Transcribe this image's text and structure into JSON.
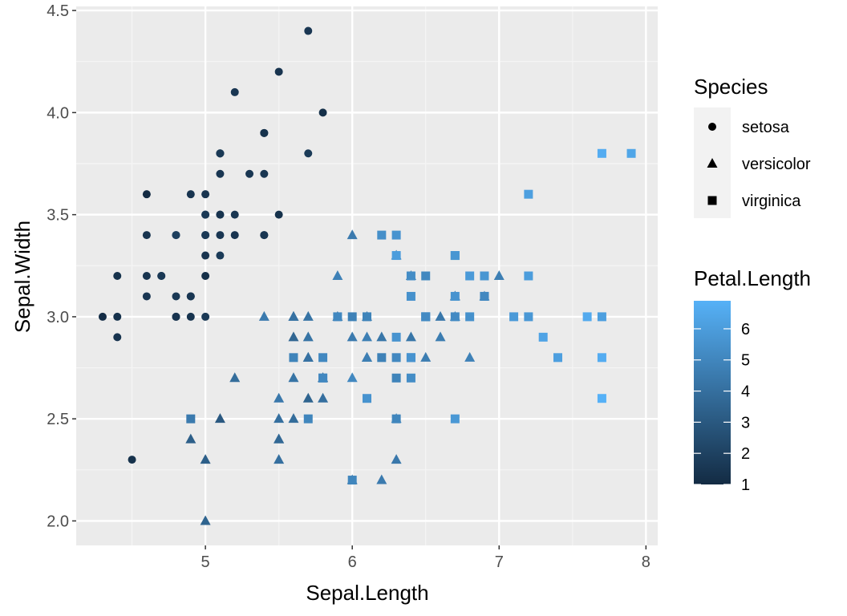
{
  "chart_data": {
    "type": "scatter",
    "title": "",
    "xlabel": "Sepal.Length",
    "ylabel": "Sepal.Width",
    "xlim": [
      4.12,
      8.08
    ],
    "ylim": [
      1.88,
      4.52
    ],
    "x_ticks": [
      "5",
      "6",
      "7",
      "8"
    ],
    "y_ticks": [
      "2.0",
      "2.5",
      "3.0",
      "3.5",
      "4.0",
      "4.5"
    ],
    "grid": true,
    "shape_legend": {
      "title": "Species",
      "position": "right",
      "entries": [
        {
          "label": "setosa",
          "shape": "circle"
        },
        {
          "label": "versicolor",
          "shape": "triangle"
        },
        {
          "label": "virginica",
          "shape": "square"
        }
      ]
    },
    "color_legend": {
      "title": "Petal.Length",
      "position": "right",
      "ticks": [
        "1",
        "2",
        "3",
        "4",
        "5",
        "6"
      ],
      "range": [
        1,
        6.9
      ],
      "low_color": "#132B43",
      "high_color": "#56B1F7"
    },
    "series": [
      {
        "name": "setosa",
        "shape": "circle",
        "points": [
          [
            5.1,
            3.5,
            1.4
          ],
          [
            4.9,
            3.0,
            1.4
          ],
          [
            4.7,
            3.2,
            1.3
          ],
          [
            4.6,
            3.1,
            1.5
          ],
          [
            5.0,
            3.6,
            1.4
          ],
          [
            5.4,
            3.9,
            1.7
          ],
          [
            4.6,
            3.4,
            1.4
          ],
          [
            5.0,
            3.4,
            1.5
          ],
          [
            4.4,
            2.9,
            1.4
          ],
          [
            4.9,
            3.1,
            1.5
          ],
          [
            5.4,
            3.7,
            1.5
          ],
          [
            4.8,
            3.4,
            1.6
          ],
          [
            4.8,
            3.0,
            1.4
          ],
          [
            4.3,
            3.0,
            1.1
          ],
          [
            5.8,
            4.0,
            1.2
          ],
          [
            5.7,
            4.4,
            1.5
          ],
          [
            5.4,
            3.9,
            1.3
          ],
          [
            5.1,
            3.5,
            1.4
          ],
          [
            5.7,
            3.8,
            1.7
          ],
          [
            5.1,
            3.8,
            1.5
          ],
          [
            5.4,
            3.4,
            1.7
          ],
          [
            5.1,
            3.7,
            1.5
          ],
          [
            4.6,
            3.6,
            1.0
          ],
          [
            5.1,
            3.3,
            1.7
          ],
          [
            4.8,
            3.4,
            1.9
          ],
          [
            5.0,
            3.0,
            1.6
          ],
          [
            5.0,
            3.4,
            1.6
          ],
          [
            5.2,
            3.5,
            1.5
          ],
          [
            5.2,
            3.4,
            1.4
          ],
          [
            4.7,
            3.2,
            1.6
          ],
          [
            4.8,
            3.1,
            1.6
          ],
          [
            5.4,
            3.4,
            1.5
          ],
          [
            5.2,
            4.1,
            1.5
          ],
          [
            5.5,
            4.2,
            1.4
          ],
          [
            4.9,
            3.1,
            1.5
          ],
          [
            5.0,
            3.2,
            1.2
          ],
          [
            5.5,
            3.5,
            1.3
          ],
          [
            4.9,
            3.6,
            1.4
          ],
          [
            4.4,
            3.0,
            1.3
          ],
          [
            5.1,
            3.4,
            1.5
          ],
          [
            5.0,
            3.5,
            1.3
          ],
          [
            4.5,
            2.3,
            1.3
          ],
          [
            4.4,
            3.2,
            1.3
          ],
          [
            5.0,
            3.5,
            1.6
          ],
          [
            5.1,
            3.8,
            1.9
          ],
          [
            4.8,
            3.0,
            1.4
          ],
          [
            5.1,
            3.8,
            1.6
          ],
          [
            4.6,
            3.2,
            1.4
          ],
          [
            5.3,
            3.7,
            1.5
          ],
          [
            5.0,
            3.3,
            1.4
          ]
        ]
      },
      {
        "name": "versicolor",
        "shape": "triangle",
        "points": [
          [
            7.0,
            3.2,
            4.7
          ],
          [
            6.4,
            3.2,
            4.5
          ],
          [
            6.9,
            3.1,
            4.9
          ],
          [
            5.5,
            2.3,
            4.0
          ],
          [
            6.5,
            2.8,
            4.6
          ],
          [
            5.7,
            2.8,
            4.5
          ],
          [
            6.3,
            3.3,
            4.7
          ],
          [
            4.9,
            2.4,
            3.3
          ],
          [
            6.6,
            2.9,
            4.6
          ],
          [
            5.2,
            2.7,
            3.9
          ],
          [
            5.0,
            2.0,
            3.5
          ],
          [
            5.9,
            3.0,
            4.2
          ],
          [
            6.0,
            2.2,
            4.0
          ],
          [
            6.1,
            2.9,
            4.7
          ],
          [
            5.6,
            2.9,
            3.6
          ],
          [
            6.7,
            3.1,
            4.4
          ],
          [
            5.6,
            3.0,
            4.5
          ],
          [
            5.8,
            2.7,
            4.1
          ],
          [
            6.2,
            2.2,
            4.5
          ],
          [
            5.6,
            2.5,
            3.9
          ],
          [
            5.9,
            3.2,
            4.8
          ],
          [
            6.1,
            2.8,
            4.0
          ],
          [
            6.3,
            2.5,
            4.9
          ],
          [
            6.1,
            2.8,
            4.7
          ],
          [
            6.4,
            2.9,
            4.3
          ],
          [
            6.6,
            3.0,
            4.4
          ],
          [
            6.8,
            2.8,
            4.8
          ],
          [
            6.7,
            3.0,
            5.0
          ],
          [
            6.0,
            2.9,
            4.5
          ],
          [
            5.7,
            2.6,
            3.5
          ],
          [
            5.5,
            2.4,
            3.8
          ],
          [
            5.5,
            2.4,
            3.7
          ],
          [
            5.8,
            2.7,
            3.9
          ],
          [
            6.0,
            2.7,
            5.1
          ],
          [
            5.4,
            3.0,
            4.5
          ],
          [
            6.0,
            3.4,
            4.5
          ],
          [
            6.7,
            3.1,
            4.7
          ],
          [
            6.3,
            2.3,
            4.4
          ],
          [
            5.6,
            3.0,
            4.1
          ],
          [
            5.5,
            2.5,
            4.0
          ],
          [
            5.5,
            2.6,
            4.4
          ],
          [
            6.1,
            3.0,
            4.6
          ],
          [
            5.8,
            2.6,
            4.0
          ],
          [
            5.0,
            2.3,
            3.3
          ],
          [
            5.6,
            2.7,
            4.2
          ],
          [
            5.7,
            3.0,
            4.2
          ],
          [
            5.7,
            2.9,
            4.2
          ],
          [
            6.2,
            2.9,
            4.3
          ],
          [
            5.1,
            2.5,
            3.0
          ],
          [
            5.7,
            2.8,
            4.1
          ]
        ]
      },
      {
        "name": "virginica",
        "shape": "square",
        "points": [
          [
            6.3,
            3.3,
            6.0
          ],
          [
            5.8,
            2.7,
            5.1
          ],
          [
            7.1,
            3.0,
            5.9
          ],
          [
            6.3,
            2.9,
            5.6
          ],
          [
            6.5,
            3.0,
            5.8
          ],
          [
            7.6,
            3.0,
            6.6
          ],
          [
            4.9,
            2.5,
            4.5
          ],
          [
            7.3,
            2.9,
            6.3
          ],
          [
            6.7,
            2.5,
            5.8
          ],
          [
            7.2,
            3.6,
            6.1
          ],
          [
            6.5,
            3.2,
            5.1
          ],
          [
            6.4,
            2.7,
            5.3
          ],
          [
            6.8,
            3.0,
            5.5
          ],
          [
            5.7,
            2.5,
            5.0
          ],
          [
            5.8,
            2.8,
            5.1
          ],
          [
            6.4,
            3.2,
            5.3
          ],
          [
            6.5,
            3.0,
            5.5
          ],
          [
            7.7,
            3.8,
            6.7
          ],
          [
            7.7,
            2.6,
            6.9
          ],
          [
            6.0,
            2.2,
            5.0
          ],
          [
            6.9,
            3.2,
            5.7
          ],
          [
            5.6,
            2.8,
            4.9
          ],
          [
            7.7,
            2.8,
            6.7
          ],
          [
            6.3,
            2.7,
            4.9
          ],
          [
            6.7,
            3.3,
            5.7
          ],
          [
            7.2,
            3.2,
            6.0
          ],
          [
            6.2,
            2.8,
            4.8
          ],
          [
            6.1,
            3.0,
            4.9
          ],
          [
            6.4,
            2.8,
            5.6
          ],
          [
            7.2,
            3.0,
            5.8
          ],
          [
            7.4,
            2.8,
            6.1
          ],
          [
            7.9,
            3.8,
            6.4
          ],
          [
            6.4,
            2.8,
            5.6
          ],
          [
            6.3,
            2.8,
            5.1
          ],
          [
            6.1,
            2.6,
            5.6
          ],
          [
            7.7,
            3.0,
            6.1
          ],
          [
            6.3,
            3.4,
            5.6
          ],
          [
            6.4,
            3.1,
            5.5
          ],
          [
            6.0,
            3.0,
            4.8
          ],
          [
            6.9,
            3.1,
            5.4
          ],
          [
            6.7,
            3.1,
            5.6
          ],
          [
            6.9,
            3.1,
            5.1
          ],
          [
            5.8,
            2.7,
            5.1
          ],
          [
            6.8,
            3.2,
            5.9
          ],
          [
            6.7,
            3.3,
            5.7
          ],
          [
            6.7,
            3.0,
            5.2
          ],
          [
            6.3,
            2.5,
            5.0
          ],
          [
            6.5,
            3.0,
            5.2
          ],
          [
            6.2,
            3.4,
            5.4
          ],
          [
            5.9,
            3.0,
            5.1
          ]
        ]
      }
    ]
  }
}
